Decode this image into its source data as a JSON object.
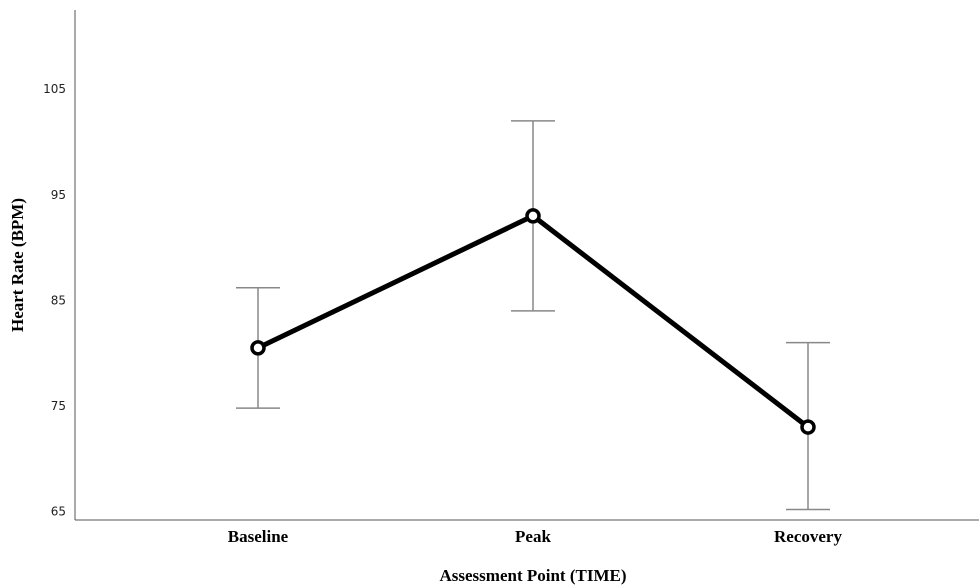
{
  "chart_data": {
    "type": "line",
    "xlabel": "Assessment Point (TIME)",
    "ylabel": "Heart Rate (BPM)",
    "categories": [
      "Baseline",
      "Peak",
      "Recovery"
    ],
    "values": [
      80.5,
      93.0,
      73.0
    ],
    "error_low": [
      74.8,
      84.0,
      65.2
    ],
    "error_high": [
      86.2,
      102.0,
      81.0
    ],
    "yticks": [
      65,
      75,
      85,
      95,
      105
    ],
    "ylim": [
      64.2,
      112.5
    ],
    "grid": false,
    "colors": {
      "line": "#000000",
      "marker_fill": "#ffffff",
      "error_bar": "#888888",
      "axis": "#555555"
    }
  }
}
